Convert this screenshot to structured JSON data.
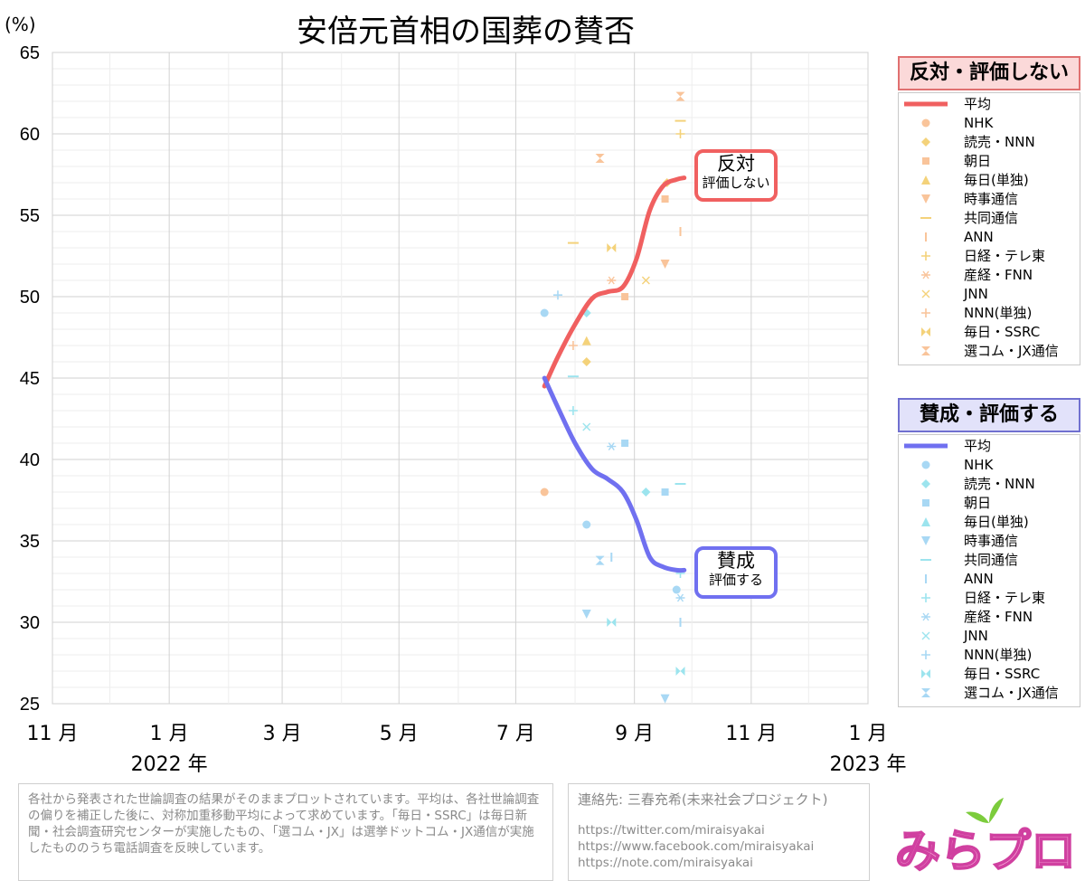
{
  "chart_data": {
    "type": "line",
    "title": "安倍元首相の国葬の賛否",
    "ylabel": "(%)",
    "ylim": [
      25,
      65
    ],
    "yticks": [
      25,
      30,
      35,
      40,
      45,
      50,
      55,
      60,
      65
    ],
    "xticks": [
      {
        "date": "2021-11-01",
        "label": "11 月"
      },
      {
        "date": "2022-01-01",
        "label": "1 月"
      },
      {
        "date": "2022-03-01",
        "label": "3 月"
      },
      {
        "date": "2022-05-01",
        "label": "5 月"
      },
      {
        "date": "2022-07-01",
        "label": "7 月"
      },
      {
        "date": "2022-09-01",
        "label": "9 月"
      },
      {
        "date": "2022-11-01",
        "label": "11 月"
      },
      {
        "date": "2023-01-01",
        "label": "1 月"
      }
    ],
    "year_labels": [
      {
        "date": "2022-01-01",
        "label": "2022 年"
      },
      {
        "date": "2023-01-01",
        "label": "2023 年"
      }
    ],
    "xlim": [
      "2021-11-01",
      "2023-01-01"
    ],
    "grid": true,
    "series": [
      {
        "name": "平均",
        "group": "oppose",
        "color": "#f06060",
        "points": [
          [
            "2022-07-16",
            44.5
          ],
          [
            "2022-07-23",
            46.3
          ],
          [
            "2022-08-01",
            48.3
          ],
          [
            "2022-08-10",
            49.9
          ],
          [
            "2022-08-18",
            50.3
          ],
          [
            "2022-08-26",
            50.6
          ],
          [
            "2022-09-02",
            52.3
          ],
          [
            "2022-09-09",
            55.3
          ],
          [
            "2022-09-16",
            56.8
          ],
          [
            "2022-09-23",
            57.2
          ],
          [
            "2022-09-27",
            57.3
          ]
        ]
      },
      {
        "name": "平均",
        "group": "support",
        "color": "#7070f0",
        "points": [
          [
            "2022-07-16",
            45.0
          ],
          [
            "2022-07-23",
            43.2
          ],
          [
            "2022-08-01",
            41.0
          ],
          [
            "2022-08-10",
            39.4
          ],
          [
            "2022-08-18",
            38.8
          ],
          [
            "2022-08-26",
            38.0
          ],
          [
            "2022-09-02",
            36.3
          ],
          [
            "2022-09-09",
            34.0
          ],
          [
            "2022-09-16",
            33.4
          ],
          [
            "2022-09-23",
            33.2
          ],
          [
            "2022-09-27",
            33.2
          ]
        ]
      }
    ],
    "polls_oppose": [
      {
        "name": "NHK",
        "symbol": "circle",
        "points": [
          [
            "2022-07-16",
            38.0
          ]
        ]
      },
      {
        "name": "読売・NNN",
        "symbol": "diamond",
        "points": [
          [
            "2022-08-07",
            46.0
          ],
          [
            "2022-09-18",
            57.0
          ]
        ]
      },
      {
        "name": "朝日",
        "symbol": "square",
        "points": [
          [
            "2022-08-27",
            50.0
          ],
          [
            "2022-09-17",
            56.0
          ]
        ]
      },
      {
        "name": "毎日(単独)",
        "symbol": "triangle",
        "points": [
          [
            "2022-08-07",
            47.3
          ]
        ]
      },
      {
        "name": "時事通信",
        "symbol": "triangle-down",
        "points": [
          [
            "2022-09-17",
            52.0
          ]
        ]
      },
      {
        "name": "共同通信",
        "symbol": "dash",
        "points": [
          [
            "2022-07-31",
            53.3
          ],
          [
            "2022-09-25",
            60.8
          ]
        ]
      },
      {
        "name": "ANN",
        "symbol": "vbar",
        "points": [
          [
            "2022-09-25",
            54.0
          ]
        ]
      },
      {
        "name": "日経・テレ東",
        "symbol": "plus",
        "points": [
          [
            "2022-09-25",
            60.0
          ]
        ]
      },
      {
        "name": "産経・FNN",
        "symbol": "asterisk",
        "points": [
          [
            "2022-08-20",
            51.0
          ]
        ]
      },
      {
        "name": "JNN",
        "symbol": "x",
        "points": [
          [
            "2022-09-07",
            51.0
          ]
        ]
      },
      {
        "name": "NNN(単独)",
        "symbol": "plus",
        "points": [
          [
            "2022-07-31",
            47.0
          ]
        ]
      },
      {
        "name": "毎日・SSRC",
        "symbol": "bowtie",
        "points": [
          [
            "2022-08-20",
            53.0
          ]
        ]
      },
      {
        "name": "選コム・JX通信",
        "symbol": "hourglass",
        "points": [
          [
            "2022-08-14",
            58.5
          ],
          [
            "2022-09-25",
            62.3
          ]
        ]
      }
    ],
    "polls_support": [
      {
        "name": "NHK",
        "symbol": "circle",
        "points": [
          [
            "2022-07-16",
            49.0
          ],
          [
            "2022-08-07",
            36.0
          ],
          [
            "2022-09-23",
            32.0
          ]
        ]
      },
      {
        "name": "読売・NNN",
        "symbol": "diamond",
        "points": [
          [
            "2022-08-07",
            49.0
          ],
          [
            "2022-09-07",
            38.0
          ]
        ]
      },
      {
        "name": "朝日",
        "symbol": "square",
        "points": [
          [
            "2022-08-27",
            41.0
          ],
          [
            "2022-09-17",
            38.0
          ]
        ]
      },
      {
        "name": "毎日(単独)",
        "symbol": "triangle",
        "points": []
      },
      {
        "name": "時事通信",
        "symbol": "triangle-down",
        "points": [
          [
            "2022-08-07",
            30.5
          ],
          [
            "2022-09-17",
            25.3
          ]
        ]
      },
      {
        "name": "共同通信",
        "symbol": "dash",
        "points": [
          [
            "2022-07-31",
            45.1
          ],
          [
            "2022-09-25",
            38.5
          ]
        ]
      },
      {
        "name": "ANN",
        "symbol": "vbar",
        "points": [
          [
            "2022-08-20",
            34.0
          ],
          [
            "2022-09-25",
            30.0
          ]
        ]
      },
      {
        "name": "日経・テレ東",
        "symbol": "plus",
        "points": [
          [
            "2022-07-31",
            43.0
          ],
          [
            "2022-09-25",
            33.0
          ]
        ]
      },
      {
        "name": "産経・FNN",
        "symbol": "asterisk",
        "points": [
          [
            "2022-08-20",
            40.8
          ],
          [
            "2022-09-25",
            31.5
          ]
        ]
      },
      {
        "name": "JNN",
        "symbol": "x",
        "points": [
          [
            "2022-08-07",
            42.0
          ]
        ]
      },
      {
        "name": "NNN(単独)",
        "symbol": "plus",
        "points": [
          [
            "2022-07-23",
            50.1
          ]
        ]
      },
      {
        "name": "毎日・SSRC",
        "symbol": "bowtie",
        "points": [
          [
            "2022-08-20",
            30.0
          ],
          [
            "2022-09-25",
            27.0
          ]
        ]
      },
      {
        "name": "選コム・JX通信",
        "symbol": "hourglass",
        "points": [
          [
            "2022-08-14",
            33.8
          ]
        ]
      }
    ]
  },
  "legend": {
    "oppose": {
      "title": "反対・評価しない",
      "bg": "#fbd9d9",
      "color": "#f06060",
      "items": [
        "平均",
        "NHK",
        "読売・NNN",
        "朝日",
        "毎日(単独)",
        "時事通信",
        "共同通信",
        "ANN",
        "日経・テレ東",
        "産経・FNN",
        "JNN",
        "NNN(単独)",
        "毎日・SSRC",
        "選コム・JX通信"
      ]
    },
    "support": {
      "title": "賛成・評価する",
      "bg": "#e2e2fa",
      "color": "#7070f0",
      "items": [
        "平均",
        "NHK",
        "読売・NNN",
        "朝日",
        "毎日(単独)",
        "時事通信",
        "共同通信",
        "ANN",
        "日経・テレ東",
        "産経・FNN",
        "JNN",
        "NNN(単独)",
        "毎日・SSRC",
        "選コム・JX通信"
      ]
    }
  },
  "callouts": {
    "oppose": {
      "big": "反対",
      "small": "評価しない"
    },
    "support": {
      "big": "賛成",
      "small": "評価する"
    }
  },
  "notes": {
    "method": "各社から発表された世論調査の結果がそのままプロットされています。平均は、各社世論調査の偏りを補正した後に、対称加重移動平均によって求めています。「毎日・SSRC」は毎日新聞・社会調査研究センターが実施したもの、「選コム・JX」は選挙ドットコム・JX通信が実施したもののうち電話調査を反映しています。",
    "contact_title": "連絡先: 三春充希(未来社会プロジェクト)",
    "links": [
      "https://twitter.com/miraisyakai",
      "https://www.facebook.com/miraisyakai",
      "https://note.com/miraisyakai"
    ]
  },
  "logo": {
    "text": "みらプロ"
  },
  "colors": {
    "oppose_marker": "#f9c49a",
    "oppose_marker2": "#f4d27a",
    "support_marker": "#a8d8f4",
    "support_marker2": "#9ce4ee"
  }
}
